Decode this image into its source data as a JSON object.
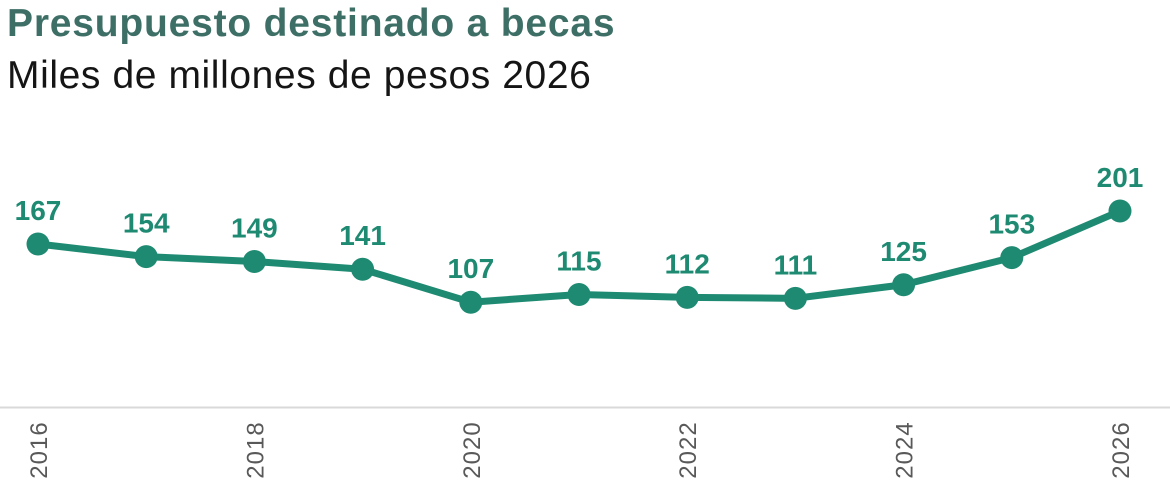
{
  "title": "Presupuesto destinado a becas",
  "subtitle": "Miles de millones de pesos 2026",
  "colors": {
    "title": "#3e6f67",
    "subtitle": "#151515",
    "series": "#1f8a72",
    "axis_line": "#d9d9d9",
    "tick_label": "#595959"
  },
  "chart_data": {
    "type": "line",
    "title": "Presupuesto destinado a becas",
    "subtitle": "Miles de millones de pesos 2026",
    "x": [
      2016,
      2017,
      2018,
      2019,
      2020,
      2021,
      2022,
      2023,
      2024,
      2025,
      2026
    ],
    "values": [
      167,
      154,
      149,
      141,
      107,
      115,
      112,
      111,
      125,
      153,
      201
    ],
    "data_labels": [
      "167",
      "154",
      "149",
      "141",
      "107",
      "115",
      "112",
      "111",
      "125",
      "153",
      "201"
    ],
    "data_label_position": "above",
    "x_tick_years": [
      2016,
      2018,
      2020,
      2022,
      2024,
      2026
    ],
    "x_tick_labels": [
      "2016",
      "2018",
      "2020",
      "2022",
      "2024",
      "2026"
    ],
    "x_tick_rotation": 90,
    "xlabel": "",
    "ylabel": "",
    "ylim": [
      0,
      275
    ],
    "grid": false,
    "legend": false,
    "marker": "circle",
    "series_name": "Presupuesto destinado a becas"
  }
}
